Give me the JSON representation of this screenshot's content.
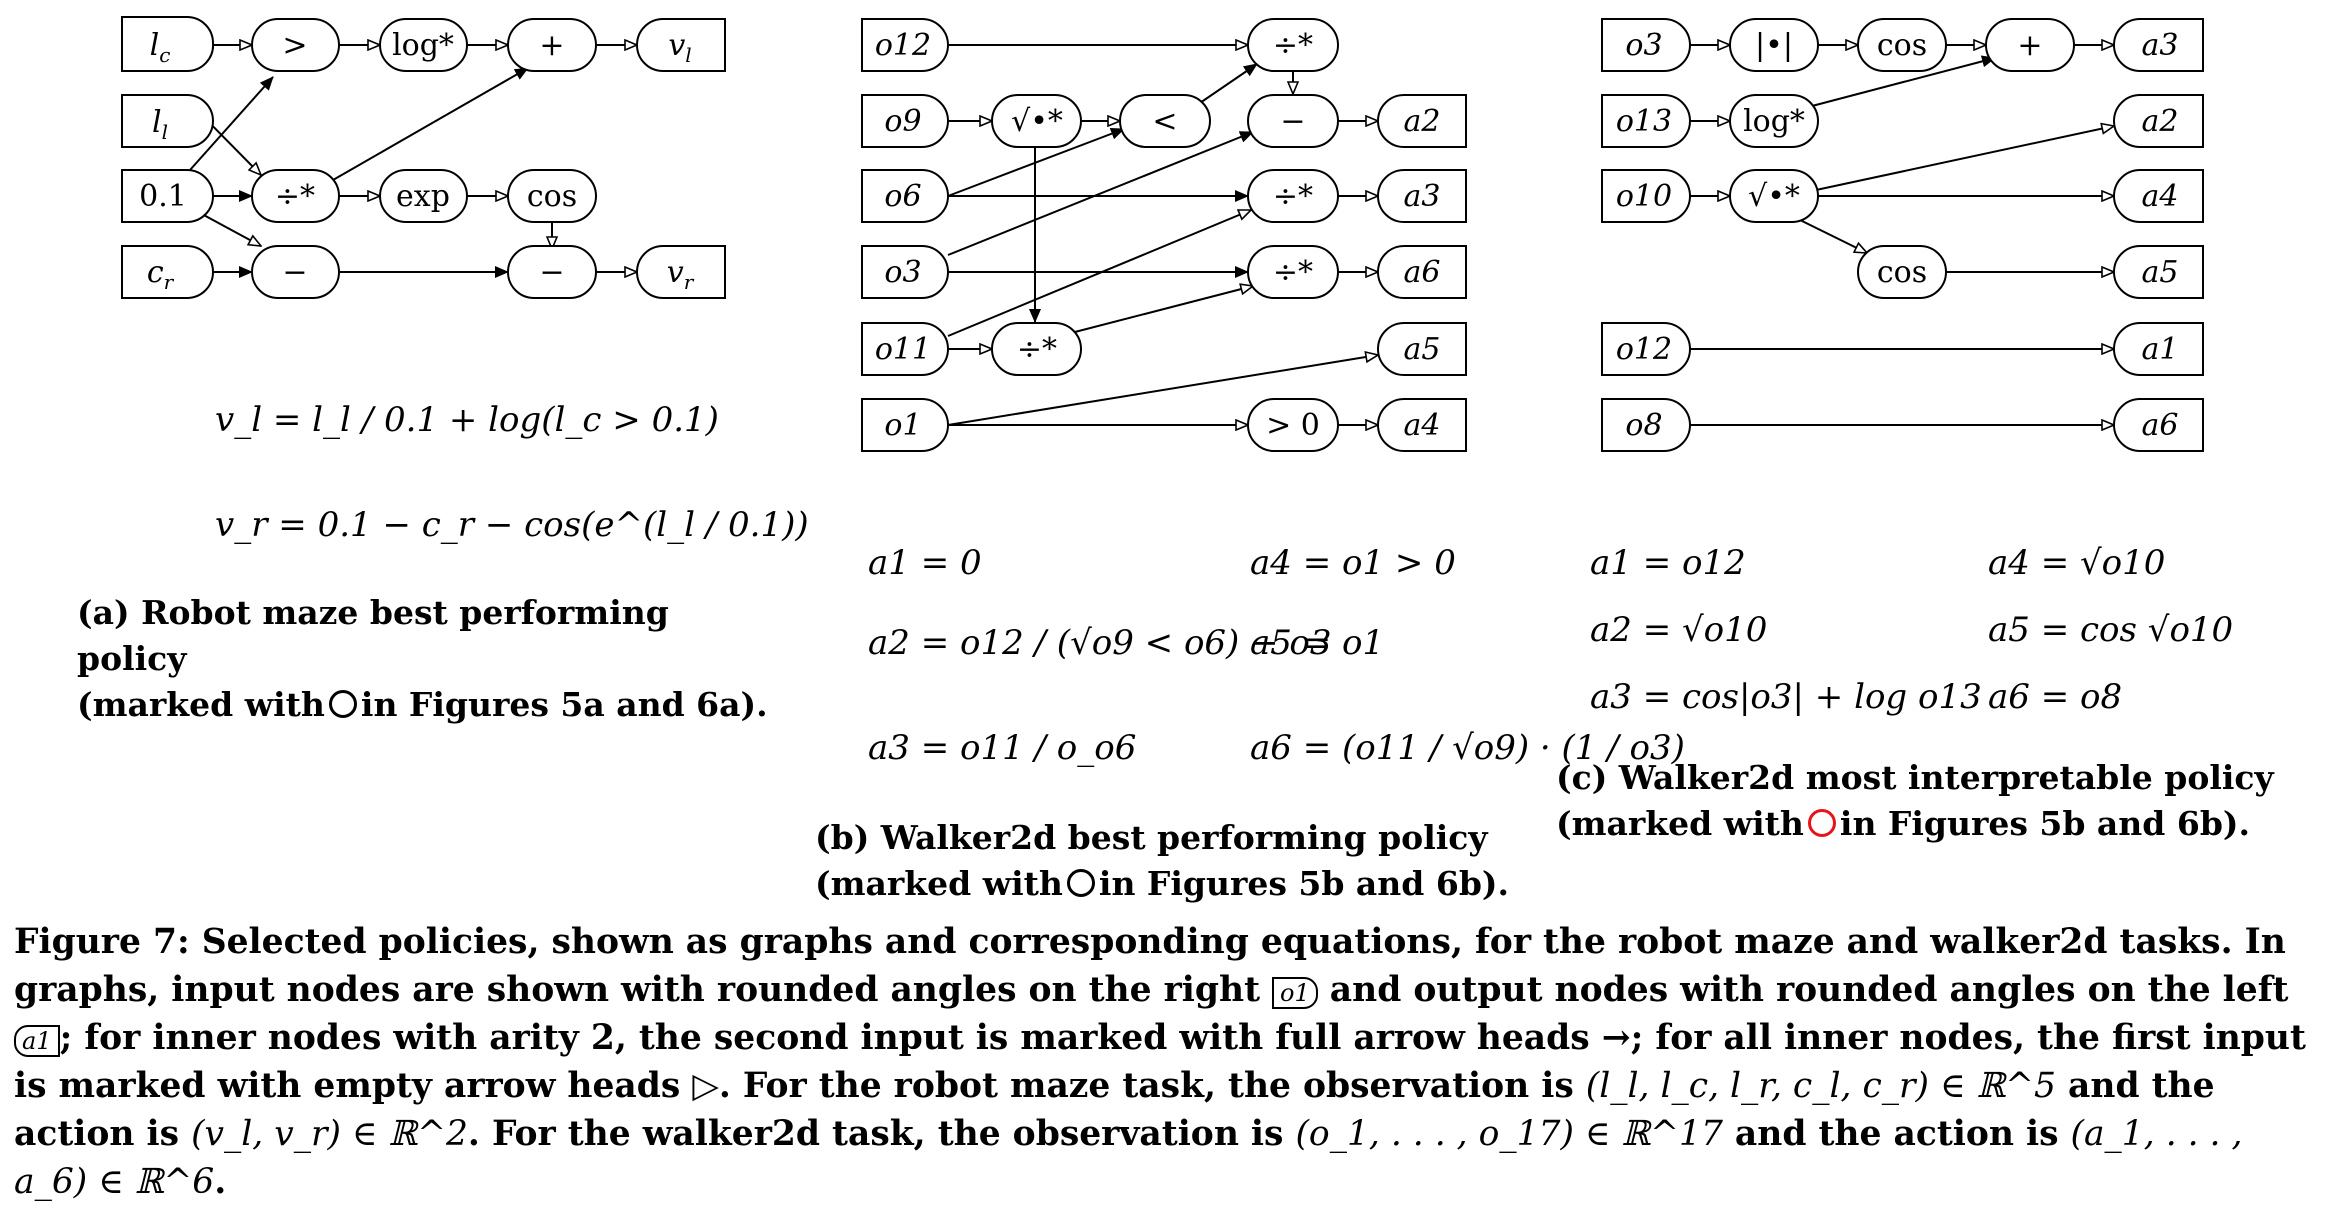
{
  "graph_a": {
    "inputs": {
      "lc": "l",
      "lc_sub": "c",
      "ll": "l",
      "ll_sub": "l",
      "const": "0.1",
      "cr": "c",
      "cr_sub": "r"
    },
    "ops": {
      "gt": ">",
      "log": "log*",
      "plus": "+",
      "div": "÷*",
      "exp": "exp",
      "cos": "cos",
      "minus1": "−",
      "minus2": "−"
    },
    "outputs": {
      "vl": "v",
      "vl_sub": "l",
      "vr": "v",
      "vr_sub": "r"
    }
  },
  "graph_b": {
    "inputs": {
      "o12": "o12",
      "o9": "o9",
      "o6": "o6",
      "o3": "o3",
      "o11": "o11",
      "o1": "o1"
    },
    "ops": {
      "div_top": "÷*",
      "sqrt": "√•*",
      "lt": "<",
      "minus": "−",
      "div_a3": "÷*",
      "div_a6": "÷*",
      "div_o11": "÷*",
      "gt0": "> 0"
    },
    "outputs": {
      "a2": "a2",
      "a3": "a3",
      "a6": "a6",
      "a5": "a5",
      "a4": "a4"
    }
  },
  "graph_c": {
    "inputs": {
      "o3": "o3",
      "o13": "o13",
      "o10": "o10",
      "o12": "o12",
      "o8": "o8"
    },
    "ops": {
      "abs": "|•|",
      "cos_top": "cos",
      "plus": "+",
      "log": "log*",
      "sqrt": "√•*",
      "cos_low": "cos"
    },
    "outputs": {
      "a3": "a3",
      "a2": "a2",
      "a4": "a4",
      "a5": "a5",
      "a1": "a1",
      "a6": "a6"
    }
  },
  "equations_a": {
    "vl": "v_l = l_l / 0.1 + log(l_c > 0.1)",
    "vr": "v_r = 0.1 − c_r − cos(e^(l_l / 0.1))"
  },
  "equations_b": {
    "a1": "a1 = 0",
    "a4": "a4 = o1 > 0",
    "a2": "a2 = o12 / (√o9 < o6) − o3",
    "a5": "a5 = o1",
    "a3": "a3 = o11 / o_o6",
    "a6": "a6 = (o11 / √o9) · (1 / o3)"
  },
  "equations_c": {
    "a1": "a1 = o12",
    "a4": "a4 = √o10",
    "a2": "a2 = √o10",
    "a5": "a5 = cos √o10",
    "a3": "a3 = cos|o3| + log o13",
    "a6": "a6 = o8"
  },
  "captions": {
    "a_line1": "(a) Robot maze best performing policy",
    "a_line2_pre": "(marked with",
    "a_line2_post": "in Figures 5a and 6a).",
    "b_line1": "(b) Walker2d best performing policy",
    "b_line2_pre": "(marked with",
    "b_line2_post": "in Figures 5b and 6b).",
    "c_line1": "(c) Walker2d most interpretable policy",
    "c_line2_pre": "(marked with",
    "c_line2_post": "in Figures 5b and 6b).",
    "marker_red_color": "#e8141b"
  },
  "figure_caption": {
    "p1": "Figure 7: Selected policies, shown as graphs and corresponding equations, for the robot maze and walker2d tasks. In graphs, input nodes are shown with rounded angles on the right",
    "icon_in": "o1",
    "p2": "and output nodes with rounded angles on the left",
    "icon_out": "a1",
    "p3": "; for inner nodes with arity 2, the second input is marked with full arrow heads →; for all inner nodes, the first input is marked with empty arrow heads ▷. For the robot maze task, the observation is",
    "obs_robot": "(l_l, l_c, l_r, c_l, c_r) ∈ ℝ^5",
    "p4": "and the action is",
    "act_robot": "(v_l, v_r) ∈ ℝ^2",
    "p5": ". For the walker2d task, the observation is",
    "obs_walker": "(o_1, . . . , o_17) ∈ ℝ^17",
    "p6": "and the action is",
    "act_walker": "(a_1, . . . , a_6) ∈ ℝ^6",
    "p7": "."
  }
}
